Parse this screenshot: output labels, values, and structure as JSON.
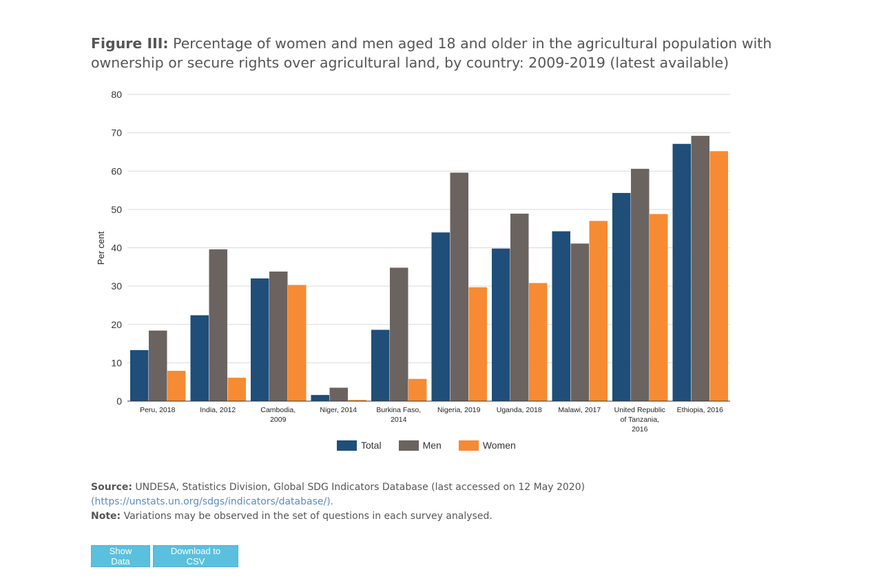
{
  "title": {
    "prefix": "Figure III:",
    "text": "Percentage of women and men aged 18 and older in the agricultural population with ownership or secure rights over agricultural land, by country: 2009-2019 (latest available)"
  },
  "chart_data": {
    "type": "bar",
    "title": "",
    "xlabel": "",
    "ylabel": "Per cent",
    "ylim": [
      0,
      80
    ],
    "yticks": [
      0,
      10,
      20,
      30,
      40,
      50,
      60,
      70,
      80
    ],
    "grid": true,
    "legend_position": "bottom",
    "categories": [
      [
        "Peru, 2018"
      ],
      [
        "India, 2012"
      ],
      [
        "Cambodia,",
        "2009"
      ],
      [
        "Niger, 2014"
      ],
      [
        "Burkina Faso,",
        "2014"
      ],
      [
        "Nigeria, 2019"
      ],
      [
        "Uganda, 2018"
      ],
      [
        "Malawi, 2017"
      ],
      [
        "United Republic",
        "of Tanzania,",
        "2016"
      ],
      [
        "Ethiopia, 2016"
      ]
    ],
    "series": [
      {
        "name": "Total",
        "color": "#1f4e79",
        "values": [
          13.3,
          22.4,
          32.0,
          1.6,
          18.6,
          44.0,
          39.8,
          44.3,
          54.3,
          67.1
        ]
      },
      {
        "name": "Men",
        "color": "#6b6360",
        "values": [
          18.4,
          39.6,
          33.8,
          3.5,
          34.8,
          59.6,
          48.9,
          41.1,
          60.6,
          69.2
        ]
      },
      {
        "name": "Women",
        "color": "#f68b33",
        "values": [
          7.9,
          6.1,
          30.3,
          0.3,
          5.8,
          29.7,
          30.8,
          47.0,
          48.8,
          65.2
        ]
      }
    ]
  },
  "notes": {
    "source_label": "Source:",
    "source_text": " UNDESA, Statistics Division, Global SDG Indicators Database (last accessed on 12 May 2020)",
    "source_link": "(https://unstats.un.org/sdgs/indicators/database/).",
    "note_label": "Note:",
    "note_text": " Variations may be observed in the set of questions in each survey analysed."
  },
  "buttons": {
    "show_data": "Show Data",
    "download_csv": "Download to CSV"
  }
}
